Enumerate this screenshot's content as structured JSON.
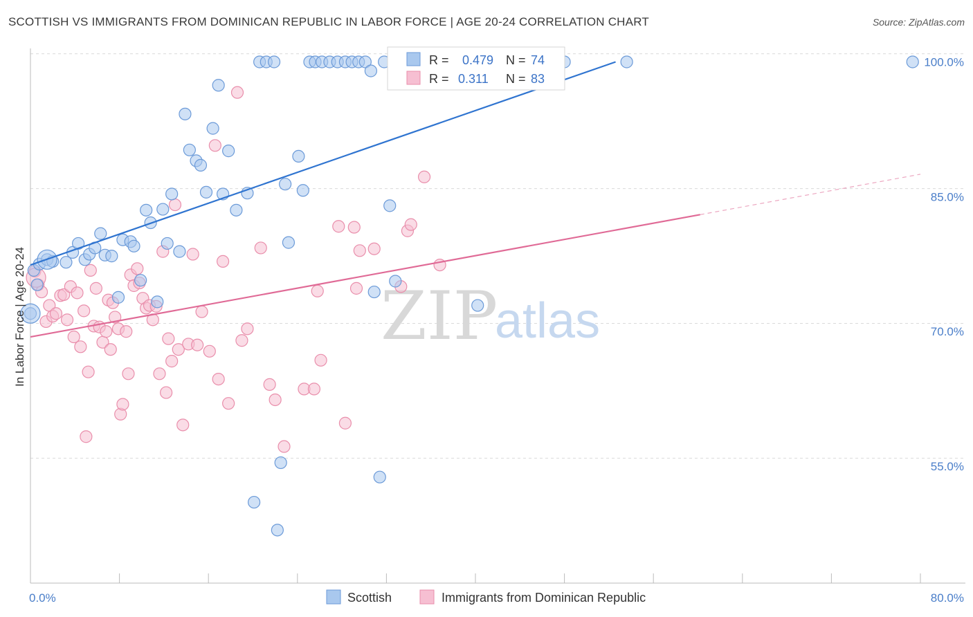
{
  "title": "SCOTTISH VS IMMIGRANTS FROM DOMINICAN REPUBLIC IN LABOR FORCE | AGE 20-24 CORRELATION CHART",
  "source": "Source: ZipAtlas.com",
  "watermark": {
    "zip": "ZIP",
    "atlas": "atlas"
  },
  "colors": {
    "blue_fill": "#a9c8ee",
    "blue_stroke": "#6b9ad8",
    "blue_line": "#2f74d0",
    "pink_fill": "#f6bfd2",
    "pink_stroke": "#e98eab",
    "pink_line": "#e06a96",
    "grid": "#d9d9d9",
    "axis_text": "#4a7ec9"
  },
  "legend": {
    "rows": [
      {
        "r_label": "R =",
        "r_value": "0.479",
        "n_label": "N =",
        "n_value": "74"
      },
      {
        "r_label": "R =",
        "r_value": "0.311",
        "n_label": "N =",
        "n_value": "83"
      }
    ]
  },
  "chart_data": {
    "type": "scatter",
    "xlabel": "",
    "ylabel": "In Labor Force | Age 20-24",
    "xlim": [
      0,
      80
    ],
    "ylim": [
      42,
      101.5
    ],
    "x_tick_labels": [
      {
        "value": 0,
        "label": "0.0%"
      },
      {
        "value": 80,
        "label": "80.0%"
      }
    ],
    "y_tick_labels": [
      {
        "value": 100,
        "label": "100.0%"
      },
      {
        "value": 85,
        "label": "85.0%"
      },
      {
        "value": 70,
        "label": "70.0%"
      },
      {
        "value": 55,
        "label": "55.0%"
      }
    ],
    "y_gridlines": [
      100.9,
      85.9,
      70.9,
      55.9
    ],
    "series": [
      {
        "name": "Scottish",
        "r": 0.479,
        "n": 74,
        "trend": {
          "x0": 0,
          "y0": 77.4,
          "x1": 52.6,
          "y1": 100.0
        },
        "points": [
          [
            0,
            72
          ],
          [
            0.3,
            76.8
          ],
          [
            0.6,
            75.2
          ],
          [
            0.8,
            77.5
          ],
          [
            1.5,
            78.0
          ],
          [
            2.0,
            77.8
          ],
          [
            3.2,
            77.7
          ],
          [
            3.8,
            78.8
          ],
          [
            4.3,
            79.8
          ],
          [
            4.9,
            78.0
          ],
          [
            5.3,
            78.6
          ],
          [
            5.8,
            79.3
          ],
          [
            6.3,
            80.9
          ],
          [
            6.7,
            78.5
          ],
          [
            7.3,
            78.4
          ],
          [
            7.9,
            73.8
          ],
          [
            8.3,
            80.2
          ],
          [
            9.0,
            80.0
          ],
          [
            9.3,
            79.5
          ],
          [
            9.9,
            75.7
          ],
          [
            10.4,
            83.5
          ],
          [
            10.8,
            82.1
          ],
          [
            11.4,
            73.3
          ],
          [
            11.9,
            83.6
          ],
          [
            12.3,
            79.8
          ],
          [
            12.7,
            85.3
          ],
          [
            13.4,
            78.9
          ],
          [
            13.9,
            94.2
          ],
          [
            14.3,
            90.2
          ],
          [
            14.9,
            89.0
          ],
          [
            15.3,
            88.5
          ],
          [
            15.8,
            85.5
          ],
          [
            16.4,
            92.6
          ],
          [
            16.9,
            97.4
          ],
          [
            17.3,
            85.3
          ],
          [
            17.8,
            90.1
          ],
          [
            18.5,
            83.5
          ],
          [
            19.5,
            85.4
          ],
          [
            20.1,
            51.0
          ],
          [
            20.6,
            100.0
          ],
          [
            21.2,
            100.0
          ],
          [
            21.9,
            100.0
          ],
          [
            22.2,
            47.9
          ],
          [
            22.5,
            55.4
          ],
          [
            22.9,
            86.4
          ],
          [
            23.2,
            79.9
          ],
          [
            24.1,
            89.5
          ],
          [
            24.5,
            85.7
          ],
          [
            25.1,
            100.0
          ],
          [
            25.6,
            100.0
          ],
          [
            26.2,
            100.0
          ],
          [
            26.9,
            100.0
          ],
          [
            27.6,
            100.0
          ],
          [
            28.3,
            100.0
          ],
          [
            28.9,
            100.0
          ],
          [
            29.5,
            100.0
          ],
          [
            30.1,
            100.0
          ],
          [
            30.6,
            99.0
          ],
          [
            30.9,
            74.4
          ],
          [
            31.4,
            53.8
          ],
          [
            31.8,
            100.0
          ],
          [
            32.3,
            84.0
          ],
          [
            32.8,
            75.6
          ],
          [
            34.7,
            100.0
          ],
          [
            35.4,
            100.0
          ],
          [
            36.2,
            100.0
          ],
          [
            37.1,
            100.0
          ],
          [
            38.0,
            100.0
          ],
          [
            38.9,
            100.0
          ],
          [
            39.5,
            100.0
          ],
          [
            40.2,
            72.9
          ],
          [
            40.8,
            100.0
          ],
          [
            48.0,
            100.0
          ],
          [
            53.6,
            100.0
          ],
          [
            79.3,
            100.0
          ]
        ],
        "big_points": [
          [
            0,
            72
          ],
          [
            1.5,
            78.0
          ]
        ]
      },
      {
        "name": "Immigrants from Dominican Republic",
        "r": 0.311,
        "n": 83,
        "trend": {
          "x0": 0,
          "y0": 69.4,
          "x1": 60.2,
          "y1": 83.0
        },
        "trend_dashed": {
          "x0": 60.2,
          "y0": 83.0,
          "x1": 80.0,
          "y1": 87.5
        },
        "points": [
          [
            0.4,
            76.7
          ],
          [
            0.7,
            75.2
          ],
          [
            1.0,
            74.4
          ],
          [
            1.4,
            71.1
          ],
          [
            1.7,
            72.9
          ],
          [
            2.0,
            71.7
          ],
          [
            2.3,
            72.0
          ],
          [
            2.7,
            74.0
          ],
          [
            3.0,
            74.1
          ],
          [
            3.3,
            71.3
          ],
          [
            3.6,
            75.0
          ],
          [
            3.9,
            69.4
          ],
          [
            4.2,
            74.3
          ],
          [
            4.5,
            68.3
          ],
          [
            4.8,
            72.3
          ],
          [
            5.0,
            58.3
          ],
          [
            5.2,
            65.5
          ],
          [
            5.4,
            76.8
          ],
          [
            5.7,
            70.6
          ],
          [
            5.9,
            74.8
          ],
          [
            6.2,
            70.5
          ],
          [
            6.5,
            68.8
          ],
          [
            6.8,
            70.0
          ],
          [
            7.0,
            73.5
          ],
          [
            7.2,
            68.0
          ],
          [
            7.4,
            73.2
          ],
          [
            7.6,
            71.6
          ],
          [
            7.9,
            70.3
          ],
          [
            8.1,
            60.8
          ],
          [
            8.3,
            61.9
          ],
          [
            8.6,
            70.0
          ],
          [
            8.8,
            65.3
          ],
          [
            9.0,
            76.3
          ],
          [
            9.3,
            75.1
          ],
          [
            9.6,
            77.0
          ],
          [
            9.8,
            75.4
          ],
          [
            10.1,
            73.7
          ],
          [
            10.4,
            72.6
          ],
          [
            10.7,
            72.9
          ],
          [
            11.0,
            71.3
          ],
          [
            11.3,
            72.8
          ],
          [
            11.6,
            65.3
          ],
          [
            11.9,
            78.9
          ],
          [
            12.2,
            63.2
          ],
          [
            12.4,
            69.2
          ],
          [
            12.7,
            66.7
          ],
          [
            13.0,
            84.1
          ],
          [
            13.3,
            68.0
          ],
          [
            13.7,
            59.6
          ],
          [
            14.2,
            68.6
          ],
          [
            14.6,
            78.6
          ],
          [
            15.0,
            68.5
          ],
          [
            15.4,
            72.2
          ],
          [
            16.1,
            67.8
          ],
          [
            16.6,
            90.7
          ],
          [
            16.9,
            64.7
          ],
          [
            17.3,
            77.8
          ],
          [
            17.8,
            62.0
          ],
          [
            18.6,
            96.6
          ],
          [
            19.0,
            69.0
          ],
          [
            19.5,
            70.3
          ],
          [
            20.7,
            79.3
          ],
          [
            21.5,
            64.1
          ],
          [
            22.0,
            62.4
          ],
          [
            22.8,
            57.2
          ],
          [
            24.6,
            63.6
          ],
          [
            25.5,
            63.6
          ],
          [
            25.8,
            74.5
          ],
          [
            26.1,
            66.8
          ],
          [
            27.7,
            81.7
          ],
          [
            28.3,
            59.8
          ],
          [
            29.1,
            81.6
          ],
          [
            29.3,
            74.8
          ],
          [
            29.6,
            79.0
          ],
          [
            30.9,
            79.2
          ],
          [
            33.3,
            75.0
          ],
          [
            33.9,
            81.2
          ],
          [
            34.2,
            81.9
          ],
          [
            35.4,
            87.2
          ],
          [
            36.8,
            77.4
          ],
          [
            46.0,
            100.0
          ]
        ],
        "big_points": [
          [
            0.5,
            76.0
          ]
        ]
      }
    ],
    "legend_entries": [
      "Scottish",
      "Immigrants from Dominican Republic"
    ],
    "legend_position": "bottom-center"
  }
}
